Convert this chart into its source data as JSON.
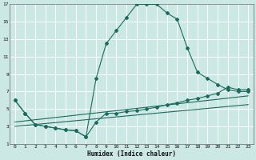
{
  "xlabel": "Humidex (Indice chaleur)",
  "bg_color": "#cce8e4",
  "grid_color": "#ffffff",
  "line_color": "#1a6b5e",
  "xlim": [
    -0.5,
    23.5
  ],
  "ylim": [
    1,
    17
  ],
  "xticks": [
    0,
    1,
    2,
    3,
    4,
    5,
    6,
    7,
    8,
    9,
    10,
    11,
    12,
    13,
    14,
    15,
    16,
    17,
    18,
    19,
    20,
    21,
    22,
    23
  ],
  "yticks": [
    1,
    3,
    5,
    7,
    9,
    11,
    13,
    15,
    17
  ],
  "series1_x": [
    0,
    1,
    2,
    3,
    4,
    5,
    6,
    7,
    8,
    9,
    10,
    11,
    12,
    13,
    14,
    15,
    16,
    17,
    18,
    19,
    20,
    21,
    22,
    23
  ],
  "series1_y": [
    6,
    4.5,
    3.2,
    3.0,
    2.8,
    2.6,
    2.5,
    1.8,
    8.5,
    12.5,
    14.0,
    15.5,
    17.0,
    17.0,
    17.0,
    16.0,
    15.3,
    12.0,
    9.2,
    8.5,
    7.8,
    7.2,
    7.0,
    7.0
  ],
  "series2_x": [
    0,
    1,
    2,
    3,
    4,
    5,
    6,
    7,
    8,
    9,
    10,
    11,
    12,
    13,
    14,
    15,
    16,
    17,
    18,
    19,
    20,
    21,
    22,
    23
  ],
  "series2_y": [
    6,
    4.5,
    3.2,
    3.0,
    2.8,
    2.6,
    2.5,
    1.8,
    3.5,
    4.5,
    4.5,
    4.7,
    4.8,
    5.0,
    5.2,
    5.5,
    5.7,
    6.0,
    6.2,
    6.5,
    6.8,
    7.5,
    7.2,
    7.2
  ],
  "series3_x": [
    0,
    23
  ],
  "series3_y": [
    3.5,
    6.5
  ],
  "series4_x": [
    0,
    23
  ],
  "series4_y": [
    3.0,
    5.5
  ]
}
